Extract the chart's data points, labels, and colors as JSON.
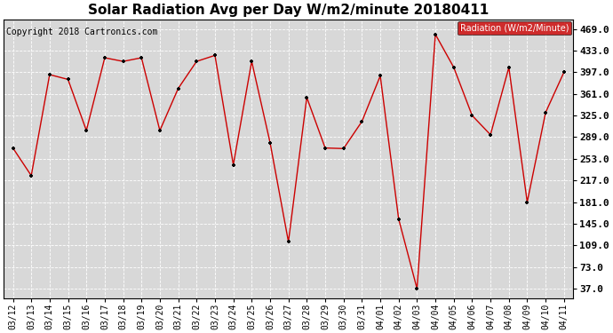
{
  "title": "Solar Radiation Avg per Day W/m2/minute 20180411",
  "copyright": "Copyright 2018 Cartronics.com",
  "legend_label": "Radiation (W/m2/Minute)",
  "dates": [
    "03/12",
    "03/13",
    "03/14",
    "03/15",
    "03/16",
    "03/17",
    "03/18",
    "03/19",
    "03/20",
    "03/21",
    "03/22",
    "03/23",
    "03/24",
    "03/25",
    "03/26",
    "03/27",
    "03/28",
    "03/29",
    "03/30",
    "03/31",
    "04/01",
    "04/02",
    "04/03",
    "04/04",
    "04/05",
    "04/06",
    "04/07",
    "04/08",
    "04/09",
    "04/10",
    "04/11"
  ],
  "values": [
    271,
    225,
    393,
    385,
    300,
    421,
    415,
    421,
    300,
    370,
    415,
    425,
    243,
    415,
    280,
    115,
    355,
    271,
    270,
    315,
    391,
    153,
    37,
    460,
    405,
    325,
    293,
    405,
    181,
    330,
    397
  ],
  "y_ticks": [
    37.0,
    73.0,
    109.0,
    145.0,
    181.0,
    217.0,
    253.0,
    289.0,
    325.0,
    361.0,
    397.0,
    433.0,
    469.0
  ],
  "ylim": [
    21.0,
    485.0
  ],
  "line_color": "#cc0000",
  "marker_color": "#000000",
  "bg_color": "#ffffff",
  "plot_bg_color": "#d8d8d8",
  "grid_color": "#ffffff",
  "title_fontsize": 11,
  "tick_fontsize": 7,
  "legend_bg": "#cc0000",
  "legend_text_color": "#ffffff",
  "copyright_fontsize": 7
}
